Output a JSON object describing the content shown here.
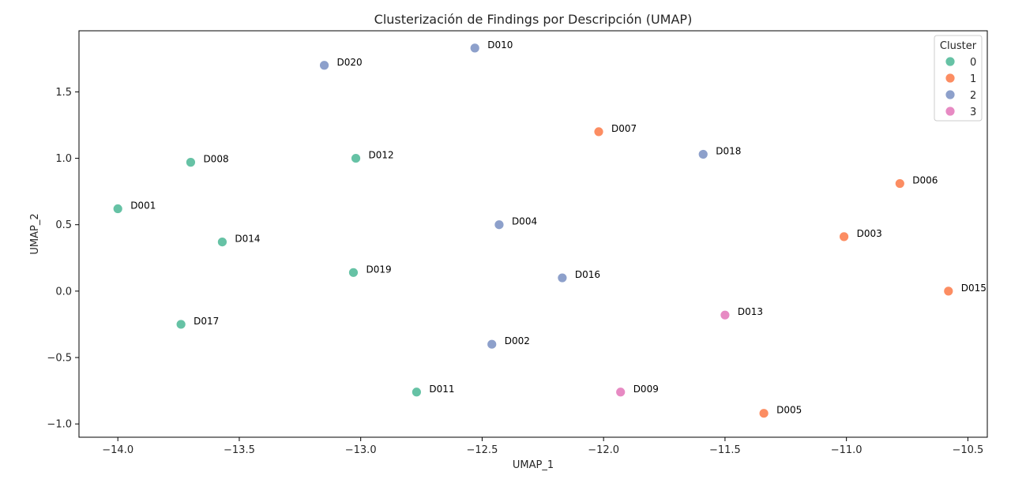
{
  "chart_data": {
    "type": "scatter",
    "title": "Clusterización de Findings por Descripción (UMAP)",
    "xlabel": "UMAP_1",
    "ylabel": "UMAP_2",
    "xlim": [
      -14.16,
      -10.42
    ],
    "ylim": [
      -1.1,
      1.96
    ],
    "xticks": [
      -14.0,
      -13.5,
      -13.0,
      -12.5,
      -12.0,
      -11.5,
      -11.0,
      -10.5
    ],
    "xtick_labels": [
      "−14.0",
      "−13.5",
      "−13.0",
      "−12.5",
      "−12.0",
      "−11.5",
      "−11.0",
      "−10.5"
    ],
    "yticks": [
      -1.0,
      -0.5,
      0.0,
      0.5,
      1.0,
      1.5
    ],
    "ytick_labels": [
      "−1.0",
      "−0.5",
      "0.0",
      "0.5",
      "1.0",
      "1.5"
    ],
    "grid": false,
    "legend": {
      "title": "Cluster",
      "placement": "top-right",
      "entries": [
        {
          "label": "0",
          "color": "#66c2a5"
        },
        {
          "label": "1",
          "color": "#fc8d62"
        },
        {
          "label": "2",
          "color": "#8da0cb"
        },
        {
          "label": "3",
          "color": "#e78ac3"
        }
      ]
    },
    "points": [
      {
        "label": "D001",
        "x": -14.0,
        "y": 0.62,
        "cluster": 0
      },
      {
        "label": "D002",
        "x": -12.46,
        "y": -0.4,
        "cluster": 2
      },
      {
        "label": "D003",
        "x": -11.01,
        "y": 0.41,
        "cluster": 1
      },
      {
        "label": "D004",
        "x": -12.43,
        "y": 0.5,
        "cluster": 2
      },
      {
        "label": "D005",
        "x": -11.34,
        "y": -0.92,
        "cluster": 1
      },
      {
        "label": "D006",
        "x": -10.78,
        "y": 0.81,
        "cluster": 1
      },
      {
        "label": "D007",
        "x": -12.02,
        "y": 1.2,
        "cluster": 1
      },
      {
        "label": "D008",
        "x": -13.7,
        "y": 0.97,
        "cluster": 0
      },
      {
        "label": "D009",
        "x": -11.93,
        "y": -0.76,
        "cluster": 3
      },
      {
        "label": "D010",
        "x": -12.53,
        "y": 1.83,
        "cluster": 2
      },
      {
        "label": "D011",
        "x": -12.77,
        "y": -0.76,
        "cluster": 0
      },
      {
        "label": "D012",
        "x": -13.02,
        "y": 1.0,
        "cluster": 0
      },
      {
        "label": "D013",
        "x": -11.5,
        "y": -0.18,
        "cluster": 3
      },
      {
        "label": "D014",
        "x": -13.57,
        "y": 0.37,
        "cluster": 0
      },
      {
        "label": "D015",
        "x": -10.58,
        "y": 0.0,
        "cluster": 1
      },
      {
        "label": "D016",
        "x": -12.17,
        "y": 0.1,
        "cluster": 2
      },
      {
        "label": "D017",
        "x": -13.74,
        "y": -0.25,
        "cluster": 0
      },
      {
        "label": "D018",
        "x": -11.59,
        "y": 1.03,
        "cluster": 2
      },
      {
        "label": "D019",
        "x": -13.03,
        "y": 0.14,
        "cluster": 0
      },
      {
        "label": "D020",
        "x": -13.15,
        "y": 1.7,
        "cluster": 2
      }
    ]
  }
}
